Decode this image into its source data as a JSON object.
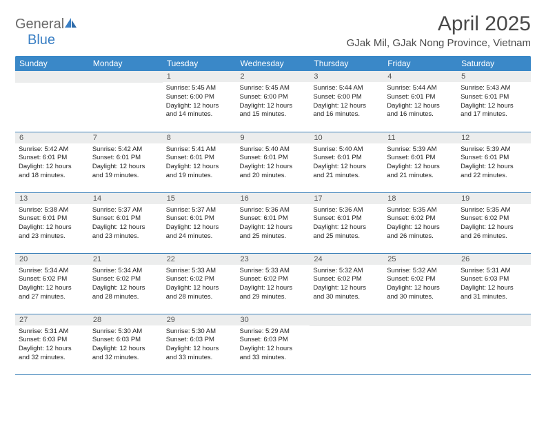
{
  "logo": {
    "text_left": "General",
    "text_right": "Blue"
  },
  "header": {
    "month_title": "April 2025",
    "location": "GJak Mil, GJak Nong Province, Vietnam"
  },
  "weekdays": [
    "Sunday",
    "Monday",
    "Tuesday",
    "Wednesday",
    "Thursday",
    "Friday",
    "Saturday"
  ],
  "colors": {
    "header_bg": "#3a88c8",
    "strip_bg": "#eceded",
    "border": "#3a7fb8",
    "logo_gray": "#6a6a6a",
    "logo_blue": "#3a7fc4"
  },
  "rows": [
    [
      {
        "day": "",
        "sunrise": "",
        "sunset": "",
        "daylight1": "",
        "daylight2": ""
      },
      {
        "day": "",
        "sunrise": "",
        "sunset": "",
        "daylight1": "",
        "daylight2": ""
      },
      {
        "day": "1",
        "sunrise": "Sunrise: 5:45 AM",
        "sunset": "Sunset: 6:00 PM",
        "daylight1": "Daylight: 12 hours",
        "daylight2": "and 14 minutes."
      },
      {
        "day": "2",
        "sunrise": "Sunrise: 5:45 AM",
        "sunset": "Sunset: 6:00 PM",
        "daylight1": "Daylight: 12 hours",
        "daylight2": "and 15 minutes."
      },
      {
        "day": "3",
        "sunrise": "Sunrise: 5:44 AM",
        "sunset": "Sunset: 6:00 PM",
        "daylight1": "Daylight: 12 hours",
        "daylight2": "and 16 minutes."
      },
      {
        "day": "4",
        "sunrise": "Sunrise: 5:44 AM",
        "sunset": "Sunset: 6:01 PM",
        "daylight1": "Daylight: 12 hours",
        "daylight2": "and 16 minutes."
      },
      {
        "day": "5",
        "sunrise": "Sunrise: 5:43 AM",
        "sunset": "Sunset: 6:01 PM",
        "daylight1": "Daylight: 12 hours",
        "daylight2": "and 17 minutes."
      }
    ],
    [
      {
        "day": "6",
        "sunrise": "Sunrise: 5:42 AM",
        "sunset": "Sunset: 6:01 PM",
        "daylight1": "Daylight: 12 hours",
        "daylight2": "and 18 minutes."
      },
      {
        "day": "7",
        "sunrise": "Sunrise: 5:42 AM",
        "sunset": "Sunset: 6:01 PM",
        "daylight1": "Daylight: 12 hours",
        "daylight2": "and 19 minutes."
      },
      {
        "day": "8",
        "sunrise": "Sunrise: 5:41 AM",
        "sunset": "Sunset: 6:01 PM",
        "daylight1": "Daylight: 12 hours",
        "daylight2": "and 19 minutes."
      },
      {
        "day": "9",
        "sunrise": "Sunrise: 5:40 AM",
        "sunset": "Sunset: 6:01 PM",
        "daylight1": "Daylight: 12 hours",
        "daylight2": "and 20 minutes."
      },
      {
        "day": "10",
        "sunrise": "Sunrise: 5:40 AM",
        "sunset": "Sunset: 6:01 PM",
        "daylight1": "Daylight: 12 hours",
        "daylight2": "and 21 minutes."
      },
      {
        "day": "11",
        "sunrise": "Sunrise: 5:39 AM",
        "sunset": "Sunset: 6:01 PM",
        "daylight1": "Daylight: 12 hours",
        "daylight2": "and 21 minutes."
      },
      {
        "day": "12",
        "sunrise": "Sunrise: 5:39 AM",
        "sunset": "Sunset: 6:01 PM",
        "daylight1": "Daylight: 12 hours",
        "daylight2": "and 22 minutes."
      }
    ],
    [
      {
        "day": "13",
        "sunrise": "Sunrise: 5:38 AM",
        "sunset": "Sunset: 6:01 PM",
        "daylight1": "Daylight: 12 hours",
        "daylight2": "and 23 minutes."
      },
      {
        "day": "14",
        "sunrise": "Sunrise: 5:37 AM",
        "sunset": "Sunset: 6:01 PM",
        "daylight1": "Daylight: 12 hours",
        "daylight2": "and 23 minutes."
      },
      {
        "day": "15",
        "sunrise": "Sunrise: 5:37 AM",
        "sunset": "Sunset: 6:01 PM",
        "daylight1": "Daylight: 12 hours",
        "daylight2": "and 24 minutes."
      },
      {
        "day": "16",
        "sunrise": "Sunrise: 5:36 AM",
        "sunset": "Sunset: 6:01 PM",
        "daylight1": "Daylight: 12 hours",
        "daylight2": "and 25 minutes."
      },
      {
        "day": "17",
        "sunrise": "Sunrise: 5:36 AM",
        "sunset": "Sunset: 6:01 PM",
        "daylight1": "Daylight: 12 hours",
        "daylight2": "and 25 minutes."
      },
      {
        "day": "18",
        "sunrise": "Sunrise: 5:35 AM",
        "sunset": "Sunset: 6:02 PM",
        "daylight1": "Daylight: 12 hours",
        "daylight2": "and 26 minutes."
      },
      {
        "day": "19",
        "sunrise": "Sunrise: 5:35 AM",
        "sunset": "Sunset: 6:02 PM",
        "daylight1": "Daylight: 12 hours",
        "daylight2": "and 26 minutes."
      }
    ],
    [
      {
        "day": "20",
        "sunrise": "Sunrise: 5:34 AM",
        "sunset": "Sunset: 6:02 PM",
        "daylight1": "Daylight: 12 hours",
        "daylight2": "and 27 minutes."
      },
      {
        "day": "21",
        "sunrise": "Sunrise: 5:34 AM",
        "sunset": "Sunset: 6:02 PM",
        "daylight1": "Daylight: 12 hours",
        "daylight2": "and 28 minutes."
      },
      {
        "day": "22",
        "sunrise": "Sunrise: 5:33 AM",
        "sunset": "Sunset: 6:02 PM",
        "daylight1": "Daylight: 12 hours",
        "daylight2": "and 28 minutes."
      },
      {
        "day": "23",
        "sunrise": "Sunrise: 5:33 AM",
        "sunset": "Sunset: 6:02 PM",
        "daylight1": "Daylight: 12 hours",
        "daylight2": "and 29 minutes."
      },
      {
        "day": "24",
        "sunrise": "Sunrise: 5:32 AM",
        "sunset": "Sunset: 6:02 PM",
        "daylight1": "Daylight: 12 hours",
        "daylight2": "and 30 minutes."
      },
      {
        "day": "25",
        "sunrise": "Sunrise: 5:32 AM",
        "sunset": "Sunset: 6:02 PM",
        "daylight1": "Daylight: 12 hours",
        "daylight2": "and 30 minutes."
      },
      {
        "day": "26",
        "sunrise": "Sunrise: 5:31 AM",
        "sunset": "Sunset: 6:03 PM",
        "daylight1": "Daylight: 12 hours",
        "daylight2": "and 31 minutes."
      }
    ],
    [
      {
        "day": "27",
        "sunrise": "Sunrise: 5:31 AM",
        "sunset": "Sunset: 6:03 PM",
        "daylight1": "Daylight: 12 hours",
        "daylight2": "and 32 minutes."
      },
      {
        "day": "28",
        "sunrise": "Sunrise: 5:30 AM",
        "sunset": "Sunset: 6:03 PM",
        "daylight1": "Daylight: 12 hours",
        "daylight2": "and 32 minutes."
      },
      {
        "day": "29",
        "sunrise": "Sunrise: 5:30 AM",
        "sunset": "Sunset: 6:03 PM",
        "daylight1": "Daylight: 12 hours",
        "daylight2": "and 33 minutes."
      },
      {
        "day": "30",
        "sunrise": "Sunrise: 5:29 AM",
        "sunset": "Sunset: 6:03 PM",
        "daylight1": "Daylight: 12 hours",
        "daylight2": "and 33 minutes."
      },
      {
        "day": "",
        "sunrise": "",
        "sunset": "",
        "daylight1": "",
        "daylight2": ""
      },
      {
        "day": "",
        "sunrise": "",
        "sunset": "",
        "daylight1": "",
        "daylight2": ""
      },
      {
        "day": "",
        "sunrise": "",
        "sunset": "",
        "daylight1": "",
        "daylight2": ""
      }
    ]
  ]
}
